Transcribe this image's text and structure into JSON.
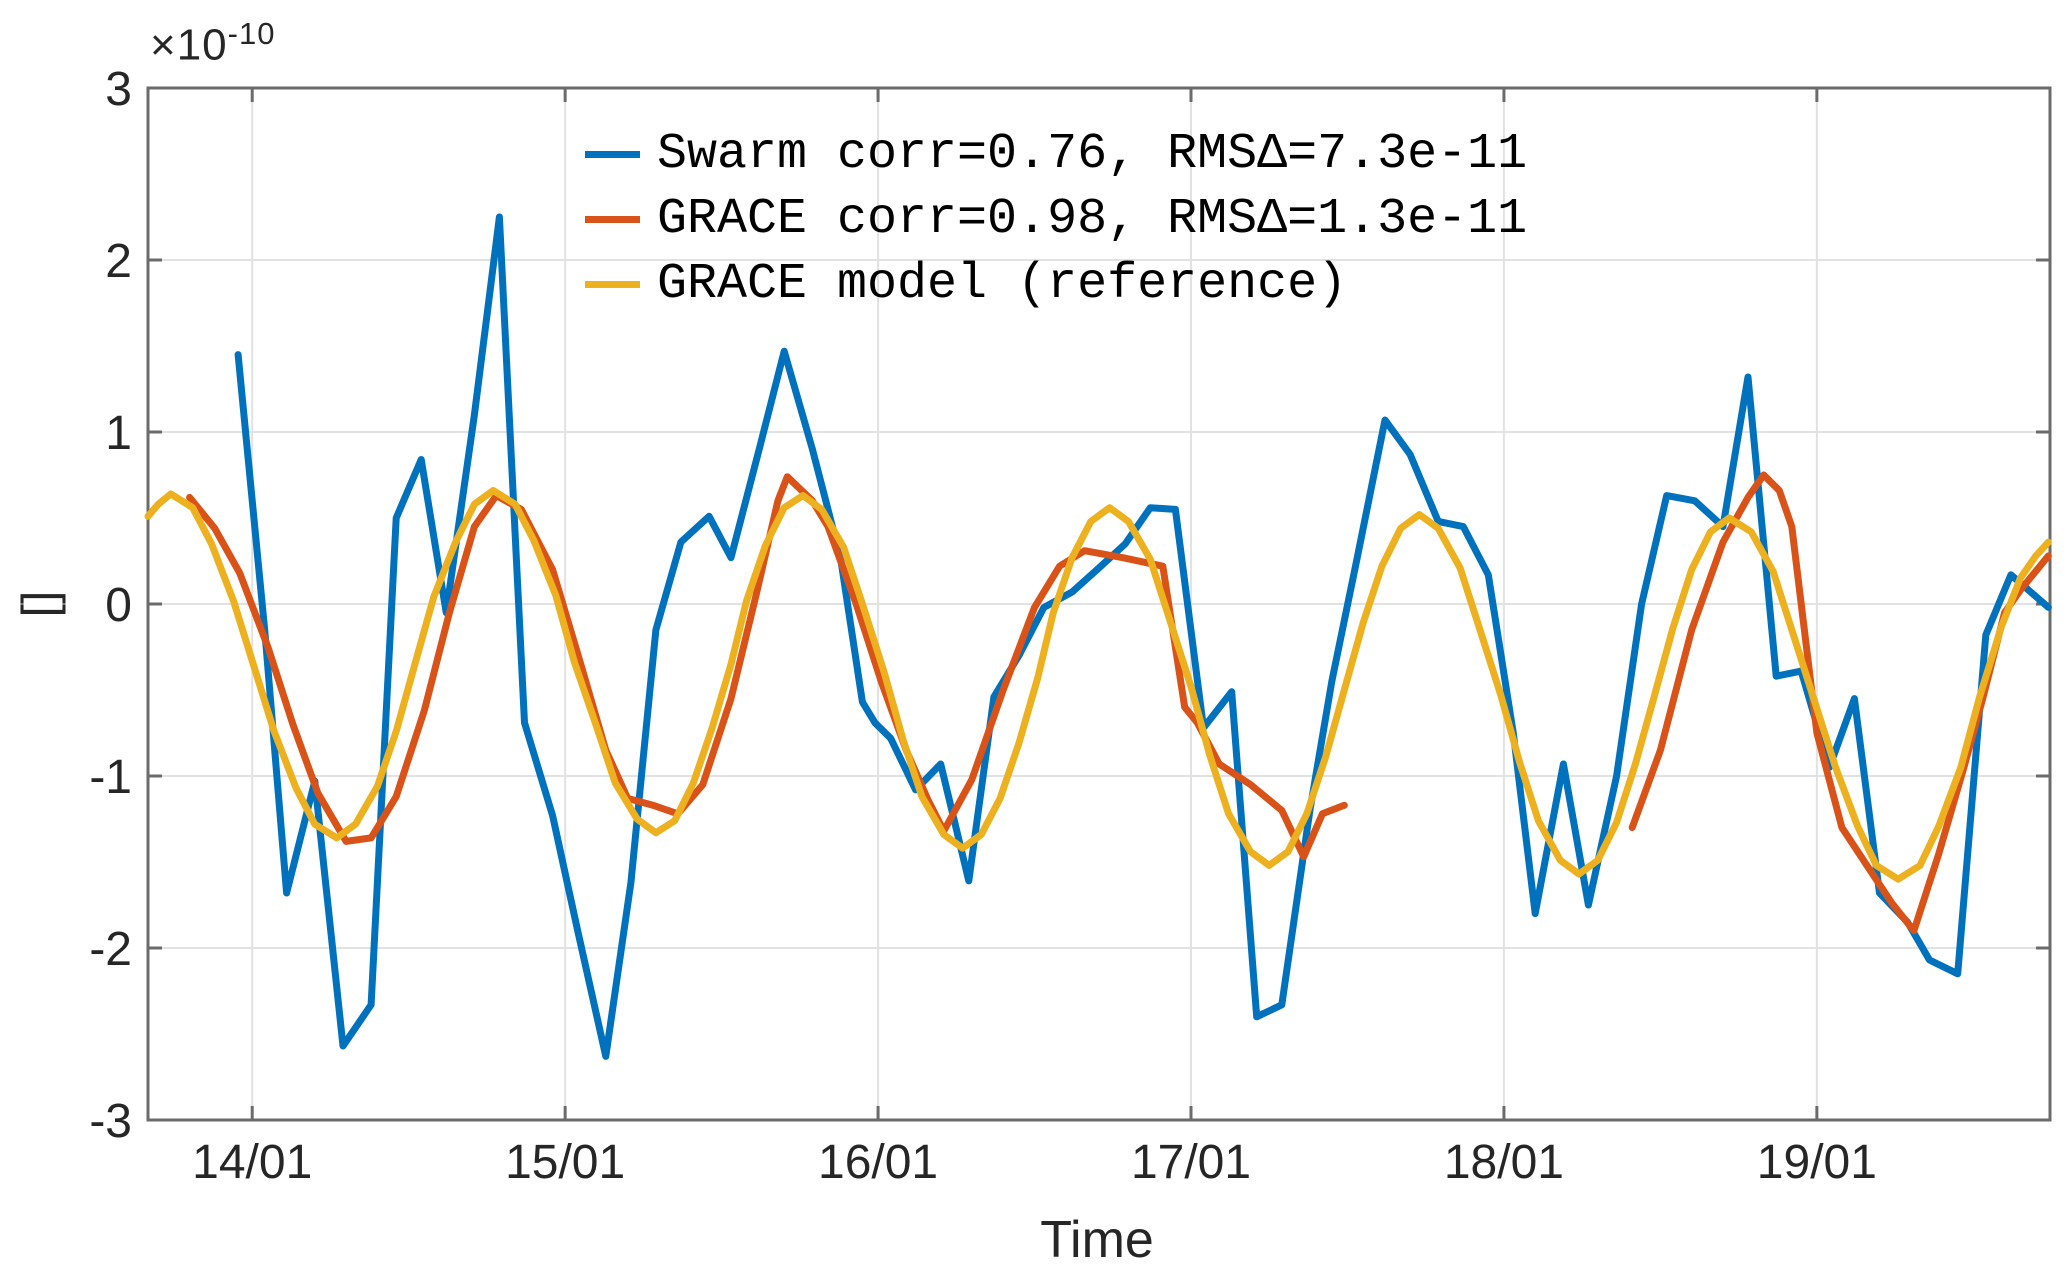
{
  "chart_data": {
    "type": "line",
    "title": "",
    "xlabel": "Time",
    "ylabel": "[]",
    "y_scale": {
      "mantissa": "×10",
      "exponent": "-10"
    },
    "xlim": [
      13.667,
      19.745
    ],
    "ylim": [
      -3,
      3
    ],
    "grid": true,
    "legend_position": "top-center-inside",
    "colors": {
      "axis": "#6b6b6b",
      "grid": "#e2e2e2",
      "labels": "#262626",
      "background": "#ffffff"
    },
    "x_ticks": [
      {
        "pos": 14,
        "label": "14/01"
      },
      {
        "pos": 15,
        "label": "15/01"
      },
      {
        "pos": 16,
        "label": "16/01"
      },
      {
        "pos": 17,
        "label": "17/01"
      },
      {
        "pos": 18,
        "label": "18/01"
      },
      {
        "pos": 19,
        "label": "19/01"
      }
    ],
    "y_ticks": [
      {
        "pos": -3,
        "label": "-3"
      },
      {
        "pos": -2,
        "label": "-2"
      },
      {
        "pos": -1,
        "label": "-1"
      },
      {
        "pos": 0,
        "label": "0"
      },
      {
        "pos": 1,
        "label": "1"
      },
      {
        "pos": 2,
        "label": "2"
      },
      {
        "pos": 3,
        "label": "3"
      }
    ],
    "series": [
      {
        "id": "swarm",
        "name": "Swarm corr=0.76, RMSΔ=7.3e-11",
        "color": "#0072BD",
        "line_width": 7,
        "segments": [
          [
            [
              13.955,
              1.45
            ],
            [
              14.04,
              -0.15
            ],
            [
              14.11,
              -1.68
            ],
            [
              14.2,
              -1.03
            ],
            [
              14.29,
              -2.57
            ],
            [
              14.38,
              -2.33
            ],
            [
              14.46,
              0.5
            ],
            [
              14.54,
              0.84
            ],
            [
              14.62,
              -0.05
            ],
            [
              14.71,
              1.1
            ],
            [
              14.79,
              2.25
            ],
            [
              14.87,
              -0.69
            ],
            [
              14.96,
              -1.23
            ],
            [
              15.04,
              -1.9
            ],
            [
              15.13,
              -2.63
            ],
            [
              15.21,
              -1.62
            ],
            [
              15.29,
              -0.15
            ],
            [
              15.37,
              0.36
            ],
            [
              15.46,
              0.51
            ],
            [
              15.53,
              0.27
            ],
            [
              15.62,
              0.9
            ],
            [
              15.7,
              1.47
            ],
            [
              15.79,
              0.9
            ],
            [
              15.88,
              0.27
            ],
            [
              15.95,
              -0.57
            ],
            [
              15.99,
              -0.69
            ],
            [
              16.04,
              -0.78
            ],
            [
              16.12,
              -1.08
            ],
            [
              16.2,
              -0.93
            ],
            [
              16.29,
              -1.61
            ],
            [
              16.37,
              -0.54
            ],
            [
              16.45,
              -0.3
            ],
            [
              16.53,
              -0.02
            ],
            [
              16.62,
              0.07
            ],
            [
              16.7,
              0.2
            ],
            [
              16.79,
              0.35
            ],
            [
              16.87,
              0.56
            ],
            [
              16.95,
              0.55
            ],
            [
              17.04,
              -0.72
            ],
            [
              17.13,
              -0.51
            ],
            [
              17.21,
              -2.4
            ],
            [
              17.29,
              -2.33
            ],
            [
              17.38,
              -1.2
            ],
            [
              17.45,
              -0.45
            ],
            [
              17.53,
              0.26
            ],
            [
              17.62,
              1.07
            ],
            [
              17.7,
              0.87
            ],
            [
              17.79,
              0.48
            ],
            [
              17.87,
              0.45
            ],
            [
              17.95,
              0.17
            ],
            [
              18.03,
              -0.75
            ],
            [
              18.1,
              -1.8
            ],
            [
              18.19,
              -0.93
            ],
            [
              18.27,
              -1.75
            ],
            [
              18.36,
              -1.0
            ],
            [
              18.44,
              0.0
            ],
            [
              18.52,
              0.63
            ],
            [
              18.61,
              0.6
            ],
            [
              18.7,
              0.45
            ],
            [
              18.78,
              1.32
            ],
            [
              18.87,
              -0.42
            ],
            [
              18.95,
              -0.39
            ],
            [
              19.04,
              -0.95
            ],
            [
              19.12,
              -0.55
            ],
            [
              19.2,
              -1.68
            ],
            [
              19.29,
              -1.85
            ],
            [
              19.36,
              -2.07
            ],
            [
              19.45,
              -2.15
            ],
            [
              19.54,
              -0.18
            ],
            [
              19.62,
              0.17
            ],
            [
              19.74,
              -0.02
            ]
          ]
        ]
      },
      {
        "id": "grace",
        "name": "GRACE corr=0.98, RMSΔ=1.3e-11",
        "color": "#D95319",
        "line_width": 7,
        "segments": [
          [
            [
              13.8,
              0.62
            ],
            [
              13.88,
              0.44
            ],
            [
              13.96,
              0.18
            ],
            [
              14.05,
              -0.25
            ],
            [
              14.13,
              -0.7
            ],
            [
              14.21,
              -1.1
            ],
            [
              14.3,
              -1.38
            ],
            [
              14.38,
              -1.36
            ],
            [
              14.46,
              -1.12
            ],
            [
              14.55,
              -0.62
            ],
            [
              14.63,
              -0.05
            ],
            [
              14.71,
              0.45
            ],
            [
              14.78,
              0.63
            ],
            [
              14.86,
              0.55
            ],
            [
              14.96,
              0.2
            ],
            [
              15.05,
              -0.35
            ],
            [
              15.13,
              -0.85
            ],
            [
              15.2,
              -1.13
            ],
            [
              15.28,
              -1.17
            ],
            [
              15.36,
              -1.22
            ],
            [
              15.44,
              -1.05
            ],
            [
              15.53,
              -0.55
            ],
            [
              15.61,
              0.05
            ],
            [
              15.68,
              0.6
            ],
            [
              15.71,
              0.74
            ],
            [
              15.79,
              0.6
            ],
            [
              15.84,
              0.45
            ],
            [
              15.93,
              0.0
            ],
            [
              16.01,
              -0.45
            ],
            [
              16.09,
              -0.85
            ],
            [
              16.16,
              -1.14
            ],
            [
              16.21,
              -1.32
            ],
            [
              16.3,
              -1.02
            ],
            [
              16.4,
              -0.5
            ],
            [
              16.5,
              -0.02
            ],
            [
              16.58,
              0.22
            ],
            [
              16.66,
              0.31
            ],
            [
              16.78,
              0.27
            ],
            [
              16.91,
              0.22
            ],
            [
              16.98,
              -0.6
            ],
            [
              17.02,
              -0.69
            ],
            [
              17.09,
              -0.93
            ],
            [
              17.19,
              -1.05
            ],
            [
              17.29,
              -1.2
            ],
            [
              17.36,
              -1.47
            ],
            [
              17.42,
              -1.22
            ],
            [
              17.49,
              -1.17
            ]
          ],
          [
            [
              18.41,
              -1.3
            ],
            [
              18.5,
              -0.85
            ],
            [
              18.6,
              -0.15
            ],
            [
              18.7,
              0.36
            ],
            [
              18.78,
              0.62
            ],
            [
              18.83,
              0.75
            ],
            [
              18.88,
              0.66
            ],
            [
              18.92,
              0.45
            ],
            [
              19.0,
              -0.75
            ],
            [
              19.08,
              -1.3
            ],
            [
              19.16,
              -1.52
            ],
            [
              19.24,
              -1.74
            ],
            [
              19.31,
              -1.9
            ],
            [
              19.39,
              -1.45
            ],
            [
              19.47,
              -0.95
            ],
            [
              19.53,
              -0.55
            ],
            [
              19.6,
              -0.05
            ],
            [
              19.65,
              0.08
            ],
            [
              19.74,
              0.28
            ]
          ]
        ]
      },
      {
        "id": "grace-model",
        "name": "GRACE model (reference)",
        "color": "#EDB120",
        "line_width": 7,
        "segments": [
          [
            [
              13.667,
              0.51
            ],
            [
              13.7,
              0.58
            ],
            [
              13.74,
              0.64
            ],
            [
              13.81,
              0.56
            ],
            [
              13.87,
              0.35
            ],
            [
              13.94,
              0.02
            ],
            [
              14.005,
              -0.36
            ],
            [
              14.07,
              -0.74
            ],
            [
              14.14,
              -1.07
            ],
            [
              14.2,
              -1.28
            ],
            [
              14.27,
              -1.36
            ],
            [
              14.33,
              -1.28
            ],
            [
              14.4,
              -1.06
            ],
            [
              14.46,
              -0.74
            ],
            [
              14.52,
              -0.35
            ],
            [
              14.58,
              0.04
            ],
            [
              14.65,
              0.36
            ],
            [
              14.71,
              0.58
            ],
            [
              14.77,
              0.66
            ],
            [
              14.84,
              0.58
            ],
            [
              14.9,
              0.37
            ],
            [
              14.97,
              0.05
            ],
            [
              15.03,
              -0.34
            ],
            [
              15.1,
              -0.71
            ],
            [
              15.16,
              -1.04
            ],
            [
              15.23,
              -1.25
            ],
            [
              15.29,
              -1.33
            ],
            [
              15.35,
              -1.26
            ],
            [
              15.41,
              -1.04
            ],
            [
              15.47,
              -0.72
            ],
            [
              15.53,
              -0.35
            ],
            [
              15.58,
              0.02
            ],
            [
              15.64,
              0.34
            ],
            [
              15.7,
              0.56
            ],
            [
              15.76,
              0.63
            ],
            [
              15.82,
              0.55
            ],
            [
              15.89,
              0.33
            ],
            [
              15.95,
              0.0
            ],
            [
              16.02,
              -0.4
            ],
            [
              16.08,
              -0.79
            ],
            [
              16.14,
              -1.12
            ],
            [
              16.21,
              -1.34
            ],
            [
              16.27,
              -1.42
            ],
            [
              16.33,
              -1.34
            ],
            [
              16.39,
              -1.13
            ],
            [
              16.45,
              -0.81
            ],
            [
              16.51,
              -0.43
            ],
            [
              16.56,
              -0.05
            ],
            [
              16.62,
              0.27
            ],
            [
              16.68,
              0.48
            ],
            [
              16.74,
              0.56
            ],
            [
              16.8,
              0.48
            ],
            [
              16.87,
              0.26
            ],
            [
              16.93,
              -0.08
            ],
            [
              17.0,
              -0.48
            ],
            [
              17.06,
              -0.88
            ],
            [
              17.12,
              -1.22
            ],
            [
              17.19,
              -1.44
            ],
            [
              17.25,
              -1.52
            ],
            [
              17.31,
              -1.44
            ],
            [
              17.37,
              -1.22
            ],
            [
              17.43,
              -0.89
            ],
            [
              17.49,
              -0.5
            ],
            [
              17.55,
              -0.11
            ],
            [
              17.61,
              0.22
            ],
            [
              17.67,
              0.44
            ],
            [
              17.73,
              0.52
            ],
            [
              17.79,
              0.44
            ],
            [
              17.86,
              0.21
            ],
            [
              17.92,
              -0.13
            ],
            [
              17.99,
              -0.53
            ],
            [
              18.05,
              -0.92
            ],
            [
              18.11,
              -1.26
            ],
            [
              18.18,
              -1.49
            ],
            [
              18.24,
              -1.57
            ],
            [
              18.3,
              -1.49
            ],
            [
              18.36,
              -1.27
            ],
            [
              18.42,
              -0.93
            ],
            [
              18.48,
              -0.54
            ],
            [
              18.54,
              -0.14
            ],
            [
              18.6,
              0.2
            ],
            [
              18.66,
              0.42
            ],
            [
              18.72,
              0.5
            ],
            [
              18.79,
              0.42
            ],
            [
              18.86,
              0.19
            ],
            [
              18.92,
              -0.15
            ],
            [
              18.99,
              -0.55
            ],
            [
              19.06,
              -0.95
            ],
            [
              19.13,
              -1.29
            ],
            [
              19.19,
              -1.52
            ],
            [
              19.26,
              -1.6
            ],
            [
              19.33,
              -1.52
            ],
            [
              19.39,
              -1.29
            ],
            [
              19.46,
              -0.95
            ],
            [
              19.52,
              -0.54
            ],
            [
              19.59,
              -0.13
            ],
            [
              19.65,
              0.15
            ],
            [
              19.7,
              0.28
            ],
            [
              19.74,
              0.36
            ]
          ]
        ]
      }
    ]
  }
}
